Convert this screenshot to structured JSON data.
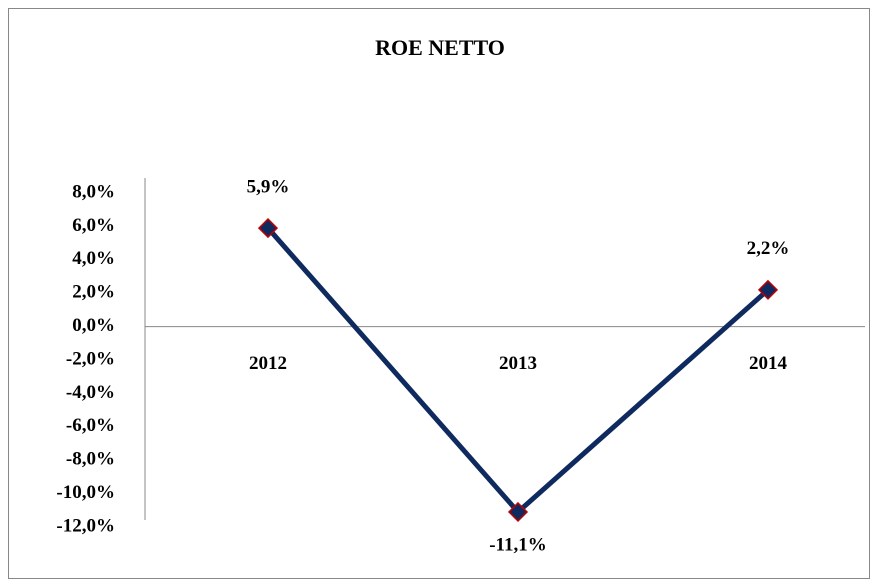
{
  "chart_data": {
    "type": "line",
    "title": "ROE NETTO",
    "categories": [
      "2012",
      "2013",
      "2014"
    ],
    "series": [
      {
        "color": "#0f2a5f",
        "marker_edge": "#c00000",
        "values": [
          5.9,
          -11.1,
          2.2
        ],
        "value_labels": [
          "5,9%",
          "-11,1%",
          "2,2%"
        ]
      }
    ],
    "ylim": [
      -12,
      8
    ],
    "yticks": [
      {
        "value": 8,
        "label": "8,0%"
      },
      {
        "value": 6,
        "label": "6,0%"
      },
      {
        "value": 4,
        "label": "4,0%"
      },
      {
        "value": 2,
        "label": "2,0%"
      },
      {
        "value": 0,
        "label": "0,0%"
      },
      {
        "value": -2,
        "label": "-2,0%"
      },
      {
        "value": -4,
        "label": "-4,0%"
      },
      {
        "value": -6,
        "label": "-6,0%"
      },
      {
        "value": -8,
        "label": "-8,0%"
      },
      {
        "value": -10,
        "label": "-10,0%"
      },
      {
        "value": -12,
        "label": "-12,0%"
      }
    ],
    "grid": false
  }
}
